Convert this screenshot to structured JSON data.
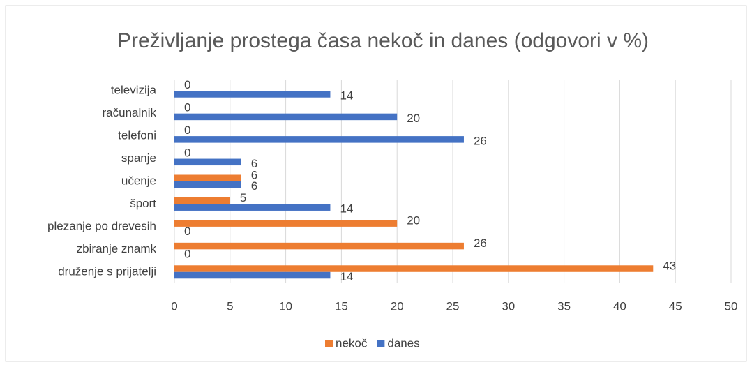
{
  "chart_data": {
    "type": "bar",
    "orientation": "horizontal",
    "title": "Preživljanje prostega časa nekoč in danes (odgovori v %)",
    "categories": [
      "televizija",
      "računalnik",
      "telefoni",
      "spanje",
      "učenje",
      "šport",
      "plezanje po drevesih",
      "zbiranje znamk",
      "druženje s prijatelji"
    ],
    "series": [
      {
        "name": "nekoč",
        "color": "#ed7d31",
        "values": [
          0,
          0,
          0,
          0,
          6,
          5,
          20,
          26,
          43
        ]
      },
      {
        "name": "danes",
        "color": "#4472c4",
        "values": [
          14,
          20,
          26,
          6,
          6,
          14,
          0,
          0,
          14
        ]
      }
    ],
    "xlim": [
      0,
      50
    ],
    "xticks": [
      0,
      5,
      10,
      15,
      20,
      25,
      30,
      35,
      40,
      45,
      50
    ],
    "grid": true,
    "legend": "bottom"
  }
}
